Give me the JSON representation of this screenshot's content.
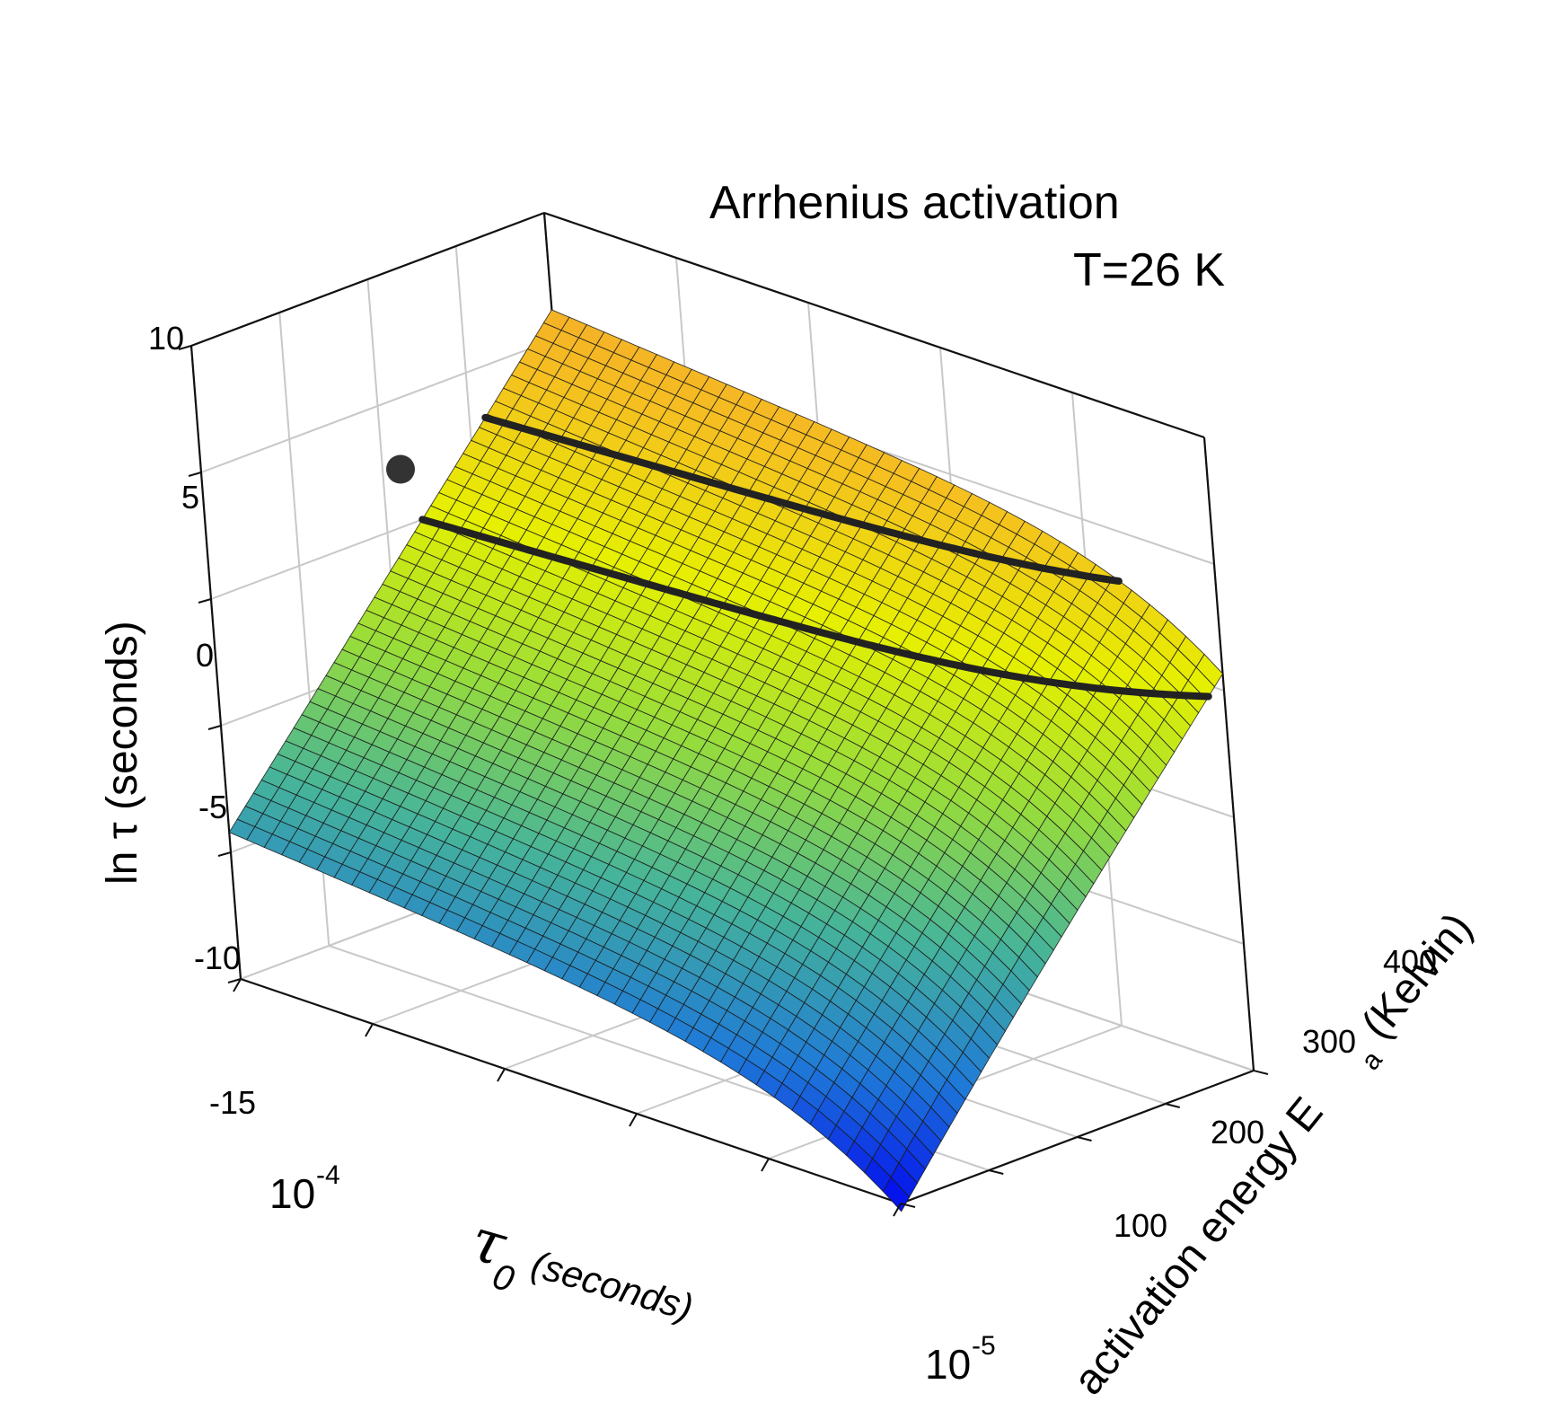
{
  "chart_data": {
    "type": "surface",
    "title": "Arrhenius activation",
    "annotation": "T=26 K",
    "zlabel": "ln τ (seconds)",
    "xlabel_symbol": "τ",
    "xlabel_subscript": "0",
    "xlabel_unit": "(seconds)",
    "ylabel_main": "activation energy E",
    "ylabel_subscript": "a",
    "ylabel_unit": "(Kelvin)",
    "temperature_K": 26,
    "z_ticks": [
      "10",
      "5",
      "0",
      "-5",
      "-10",
      "-15"
    ],
    "z_range": [
      -15,
      10
    ],
    "x_ticks": [
      {
        "base": "10",
        "exp": "-4"
      },
      {
        "base": "10",
        "exp": "-5"
      }
    ],
    "y_ticks": [
      "100",
      "200",
      "300",
      "400"
    ],
    "y_range": [
      0,
      400
    ],
    "x_scale": "log",
    "grid": true,
    "colormap": [
      "#0000f0",
      "#1e78d8",
      "#46b49a",
      "#96dc3c",
      "#e6f000",
      "#f5c020",
      "#f5a030"
    ],
    "contours_ln_tau": [
      0,
      3
    ],
    "marker": {
      "E_a_K": 200,
      "ln_tau": 2.5
    }
  }
}
